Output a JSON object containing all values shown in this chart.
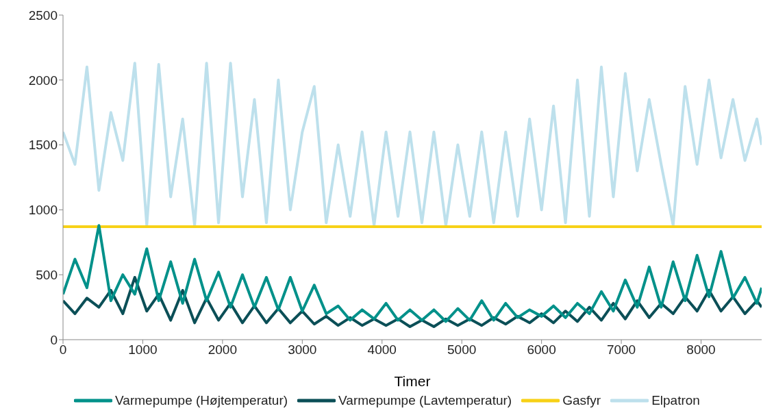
{
  "chart_data": {
    "type": "line",
    "xlabel": "Timer",
    "xlim": [
      0,
      8760
    ],
    "xticks": [
      0,
      1000,
      2000,
      3000,
      4000,
      5000,
      6000,
      7000,
      8000
    ],
    "ylim": [
      0,
      2500
    ],
    "yticks": [
      0,
      500,
      1000,
      1500,
      2000,
      2500
    ],
    "grid": false,
    "legend": "bottom",
    "marker": "none",
    "line_style": "solid",
    "x": [
      0,
      150,
      300,
      450,
      600,
      750,
      900,
      1050,
      1200,
      1350,
      1500,
      1650,
      1800,
      1950,
      2100,
      2250,
      2400,
      2550,
      2700,
      2850,
      3000,
      3150,
      3300,
      3450,
      3600,
      3750,
      3900,
      4050,
      4200,
      4350,
      4500,
      4650,
      4800,
      4950,
      5100,
      5250,
      5400,
      5550,
      5700,
      5850,
      6000,
      6150,
      6300,
      6450,
      6600,
      6750,
      6900,
      7050,
      7200,
      7350,
      7500,
      7650,
      7800,
      7950,
      8100,
      8250,
      8400,
      8550,
      8700,
      8760
    ],
    "series": [
      {
        "name": "Varmepumpe (Højtemperatur)",
        "color": "#00918a",
        "values": [
          350,
          620,
          400,
          880,
          300,
          500,
          350,
          700,
          300,
          600,
          280,
          620,
          300,
          520,
          250,
          500,
          250,
          480,
          230,
          480,
          220,
          420,
          200,
          260,
          150,
          230,
          160,
          280,
          150,
          230,
          150,
          230,
          140,
          240,
          150,
          300,
          150,
          280,
          170,
          230,
          180,
          260,
          170,
          280,
          200,
          370,
          220,
          460,
          250,
          560,
          250,
          600,
          300,
          650,
          330,
          680,
          320,
          480,
          280,
          400
        ]
      },
      {
        "name": "Varmepumpe (Lavtemperatur)",
        "color": "#0b4f57",
        "values": [
          300,
          200,
          320,
          250,
          380,
          200,
          480,
          220,
          350,
          150,
          380,
          130,
          320,
          150,
          280,
          130,
          260,
          130,
          240,
          130,
          220,
          120,
          180,
          110,
          170,
          110,
          160,
          110,
          160,
          100,
          150,
          100,
          160,
          110,
          160,
          110,
          170,
          120,
          180,
          130,
          200,
          130,
          220,
          140,
          250,
          150,
          280,
          160,
          300,
          170,
          280,
          200,
          330,
          220,
          380,
          220,
          330,
          200,
          300,
          250
        ]
      },
      {
        "name": "Gasfyr",
        "color": "#f7d117",
        "x": [
          0,
          8760
        ],
        "values": [
          870,
          870
        ]
      },
      {
        "name": "Elpatron",
        "color": "#bde0ec",
        "values": [
          1600,
          1350,
          2100,
          1150,
          1750,
          1380,
          2130,
          880,
          2120,
          1100,
          1700,
          880,
          2130,
          900,
          2130,
          1100,
          1850,
          900,
          2000,
          1000,
          1600,
          1950,
          900,
          1500,
          950,
          1600,
          880,
          1600,
          950,
          1600,
          900,
          1600,
          880,
          1500,
          950,
          1600,
          900,
          1600,
          950,
          1700,
          1000,
          1800,
          900,
          2000,
          950,
          2100,
          1100,
          2050,
          1300,
          1850,
          1350,
          880,
          1950,
          1350,
          2000,
          1400,
          1850,
          1380,
          1700,
          1500
        ]
      }
    ]
  }
}
